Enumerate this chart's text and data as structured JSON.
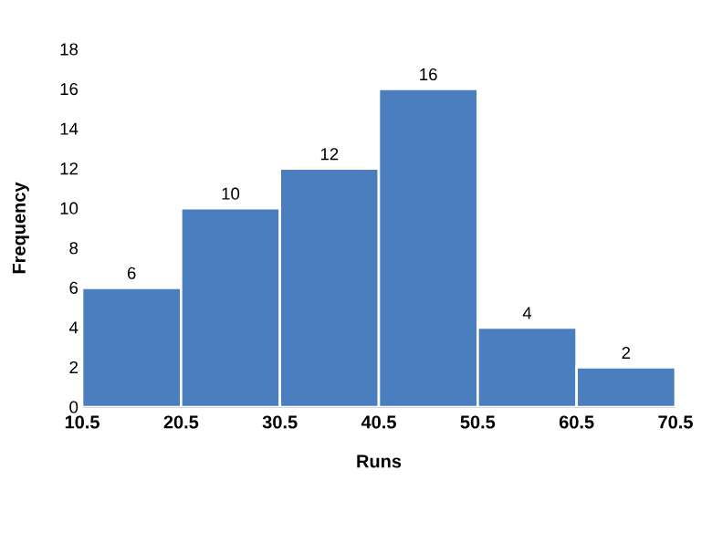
{
  "chart_data": {
    "type": "histogram",
    "xlabel": "Runs",
    "ylabel": "Frequency",
    "bins": [
      10.5,
      20.5,
      30.5,
      40.5,
      50.5,
      60.5,
      70.5
    ],
    "values": [
      6,
      10,
      12,
      16,
      4,
      2
    ],
    "color": "#4a7ebf",
    "xlim": [
      10.5,
      70.5
    ],
    "xticks": [
      10.5,
      20.5,
      30.5,
      40.5,
      50.5,
      60.5,
      70.5
    ],
    "ylim": [
      0,
      18
    ],
    "yticks": [
      0,
      2,
      4,
      6,
      8,
      10,
      12,
      14,
      16,
      18
    ],
    "data_labels": true,
    "grid": false
  }
}
